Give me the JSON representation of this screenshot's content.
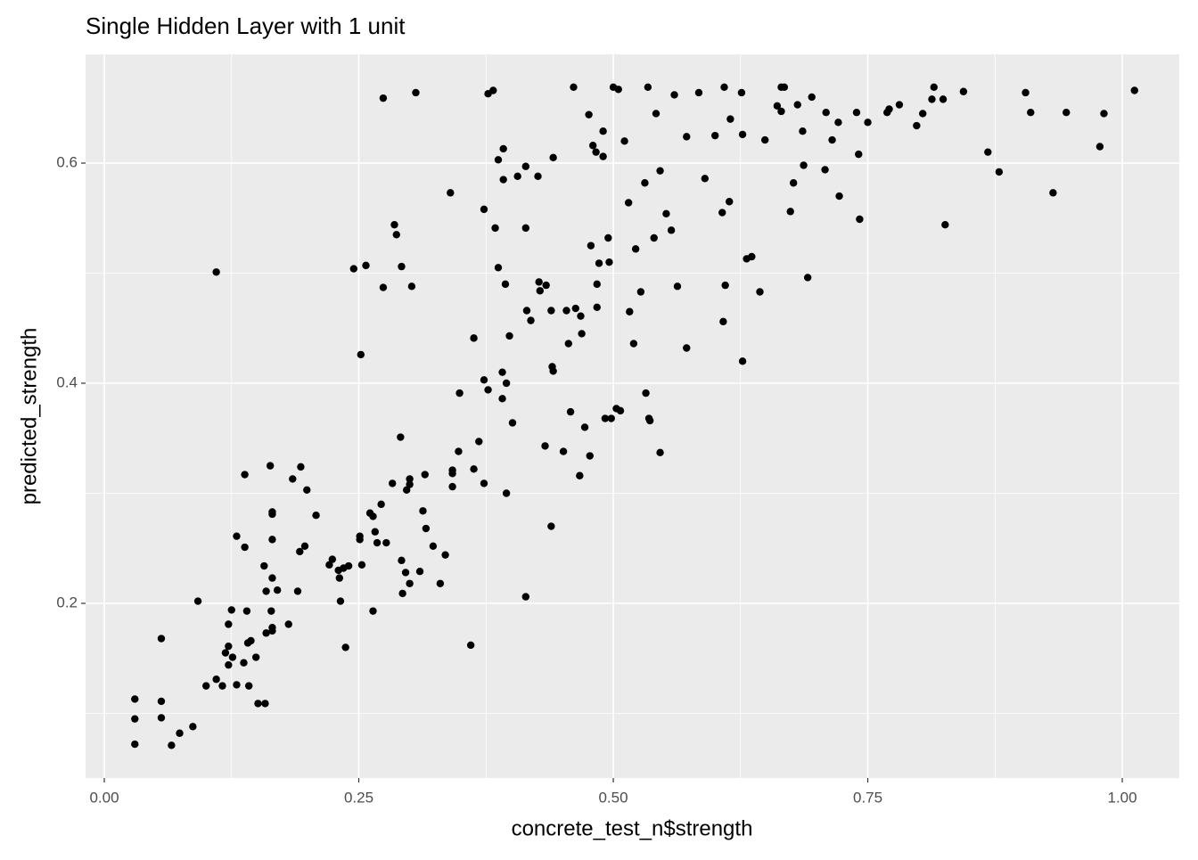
{
  "chart_data": {
    "type": "scatter",
    "title": "Single Hidden Layer with 1 unit",
    "x_label": "concrete_test_n$strength",
    "y_label": "predicted_strength",
    "color": "#000000",
    "grid": true,
    "minor_grid": true,
    "background": "#ebebeb",
    "xlim": [
      -0.0184,
      1.056
    ],
    "ylim": [
      0.0413,
      0.6988
    ],
    "xticks": [
      {
        "value": 0,
        "label": "0.00"
      },
      {
        "value": 0.25,
        "label": "0.25"
      },
      {
        "value": 0.5,
        "label": "0.50"
      },
      {
        "value": 0.75,
        "label": "0.75"
      },
      {
        "value": 1,
        "label": "1.00"
      }
    ],
    "yticks": [
      0.2,
      0.4,
      0.6
    ],
    "x": [
      0.03,
      0.03,
      0.03,
      0.056,
      0.056,
      0.056,
      0.066,
      0.074,
      0.087,
      0.092,
      0.1,
      0.11,
      0.11,
      0.116,
      0.119,
      0.122,
      0.122,
      0.122,
      0.125,
      0.126,
      0.13,
      0.13,
      0.137,
      0.138,
      0.138,
      0.14,
      0.141,
      0.142,
      0.144,
      0.149,
      0.151,
      0.158,
      0.157,
      0.159,
      0.159,
      0.163,
      0.164,
      0.165,
      0.165,
      0.165,
      0.165,
      0.165,
      0.165,
      0.17,
      0.181,
      0.185,
      0.19,
      0.192,
      0.193,
      0.197,
      0.199,
      0.208,
      0.221,
      0.224,
      0.23,
      0.232,
      0.231,
      0.235,
      0.237,
      0.24,
      0.245,
      0.252,
      0.251,
      0.251,
      0.253,
      0.257,
      0.261,
      0.264,
      0.264,
      0.266,
      0.268,
      0.272,
      0.274,
      0.274,
      0.277,
      0.283,
      0.285,
      0.287,
      0.291,
      0.292,
      0.292,
      0.293,
      0.296,
      0.297,
      0.3,
      0.3,
      0.3,
      0.302,
      0.306,
      0.31,
      0.313,
      0.315,
      0.316,
      0.323,
      0.33,
      0.335,
      0.34,
      0.342,
      0.342,
      0.342,
      0.348,
      0.349,
      0.36,
      0.363,
      0.363,
      0.368,
      0.373,
      0.373,
      0.373,
      0.377,
      0.377,
      0.382,
      0.384,
      0.387,
      0.387,
      0.391,
      0.391,
      0.392,
      0.392,
      0.394,
      0.395,
      0.395,
      0.398,
      0.401,
      0.406,
      0.414,
      0.414,
      0.414,
      0.415,
      0.419,
      0.426,
      0.427,
      0.428,
      0.433,
      0.434,
      0.439,
      0.439,
      0.44,
      0.441,
      0.441,
      0.451,
      0.454,
      0.456,
      0.458,
      0.461,
      0.463,
      0.467,
      0.468,
      0.469,
      0.472,
      0.476,
      0.477,
      0.478,
      0.48,
      0.483,
      0.484,
      0.484,
      0.486,
      0.49,
      0.49,
      0.492,
      0.495,
      0.496,
      0.498,
      0.5,
      0.503,
      0.505,
      0.507,
      0.511,
      0.515,
      0.516,
      0.52,
      0.522,
      0.527,
      0.531,
      0.532,
      0.534,
      0.535,
      0.536,
      0.54,
      0.542,
      0.546,
      0.546,
      0.552,
      0.557,
      0.56,
      0.563,
      0.572,
      0.572,
      0.584,
      0.59,
      0.6,
      0.607,
      0.608,
      0.609,
      0.61,
      0.614,
      0.615,
      0.626,
      0.627,
      0.627,
      0.631,
      0.636,
      0.644,
      0.649,
      0.661,
      0.665,
      0.665,
      0.668,
      0.674,
      0.677,
      0.681,
      0.686,
      0.687,
      0.691,
      0.695,
      0.708,
      0.709,
      0.715,
      0.721,
      0.722,
      0.739,
      0.741,
      0.742,
      0.75,
      0.769,
      0.771,
      0.781,
      0.798,
      0.804,
      0.813,
      0.815,
      0.824,
      0.826,
      0.844,
      0.868,
      0.879,
      0.905,
      0.91,
      0.932,
      0.945,
      0.978,
      0.982,
      1.012
    ],
    "values": [
      0.113,
      0.095,
      0.072,
      0.168,
      0.111,
      0.096,
      0.071,
      0.082,
      0.088,
      0.202,
      0.125,
      0.501,
      0.131,
      0.125,
      0.155,
      0.181,
      0.161,
      0.144,
      0.194,
      0.151,
      0.261,
      0.126,
      0.146,
      0.317,
      0.251,
      0.193,
      0.164,
      0.125,
      0.166,
      0.151,
      0.109,
      0.109,
      0.234,
      0.211,
      0.173,
      0.325,
      0.193,
      0.283,
      0.281,
      0.258,
      0.223,
      0.178,
      0.175,
      0.212,
      0.181,
      0.313,
      0.211,
      0.247,
      0.324,
      0.252,
      0.303,
      0.28,
      0.235,
      0.24,
      0.23,
      0.202,
      0.223,
      0.232,
      0.16,
      0.234,
      0.504,
      0.426,
      0.261,
      0.258,
      0.235,
      0.507,
      0.282,
      0.279,
      0.193,
      0.265,
      0.255,
      0.29,
      0.659,
      0.487,
      0.255,
      0.309,
      0.544,
      0.535,
      0.351,
      0.506,
      0.239,
      0.209,
      0.228,
      0.303,
      0.313,
      0.308,
      0.218,
      0.488,
      0.664,
      0.229,
      0.284,
      0.317,
      0.268,
      0.252,
      0.218,
      0.244,
      0.573,
      0.321,
      0.318,
      0.306,
      0.338,
      0.391,
      0.162,
      0.441,
      0.322,
      0.347,
      0.558,
      0.403,
      0.309,
      0.394,
      0.663,
      0.666,
      0.541,
      0.505,
      0.603,
      0.41,
      0.386,
      0.585,
      0.613,
      0.49,
      0.4,
      0.3,
      0.443,
      0.364,
      0.588,
      0.541,
      0.597,
      0.206,
      0.466,
      0.457,
      0.588,
      0.492,
      0.484,
      0.343,
      0.489,
      0.27,
      0.466,
      0.415,
      0.605,
      0.411,
      0.338,
      0.466,
      0.436,
      0.374,
      0.669,
      0.468,
      0.316,
      0.461,
      0.445,
      0.36,
      0.644,
      0.334,
      0.525,
      0.616,
      0.61,
      0.469,
      0.49,
      0.509,
      0.629,
      0.606,
      0.368,
      0.532,
      0.51,
      0.368,
      0.669,
      0.377,
      0.667,
      0.375,
      0.62,
      0.564,
      0.465,
      0.436,
      0.522,
      0.483,
      0.582,
      0.391,
      0.669,
      0.368,
      0.366,
      0.532,
      0.645,
      0.593,
      0.337,
      0.554,
      0.539,
      0.662,
      0.488,
      0.624,
      0.432,
      0.664,
      0.586,
      0.625,
      0.555,
      0.456,
      0.669,
      0.489,
      0.565,
      0.64,
      0.664,
      0.626,
      0.42,
      0.513,
      0.515,
      0.483,
      0.621,
      0.652,
      0.669,
      0.647,
      0.669,
      0.556,
      0.582,
      0.653,
      0.629,
      0.598,
      0.496,
      0.66,
      0.594,
      0.646,
      0.621,
      0.637,
      0.57,
      0.646,
      0.608,
      0.549,
      0.637,
      0.646,
      0.649,
      0.653,
      0.634,
      0.645,
      0.658,
      0.669,
      0.658,
      0.544,
      0.665,
      0.61,
      0.592,
      0.664,
      0.646,
      0.573,
      0.646,
      0.615,
      0.645,
      0.666
    ]
  }
}
